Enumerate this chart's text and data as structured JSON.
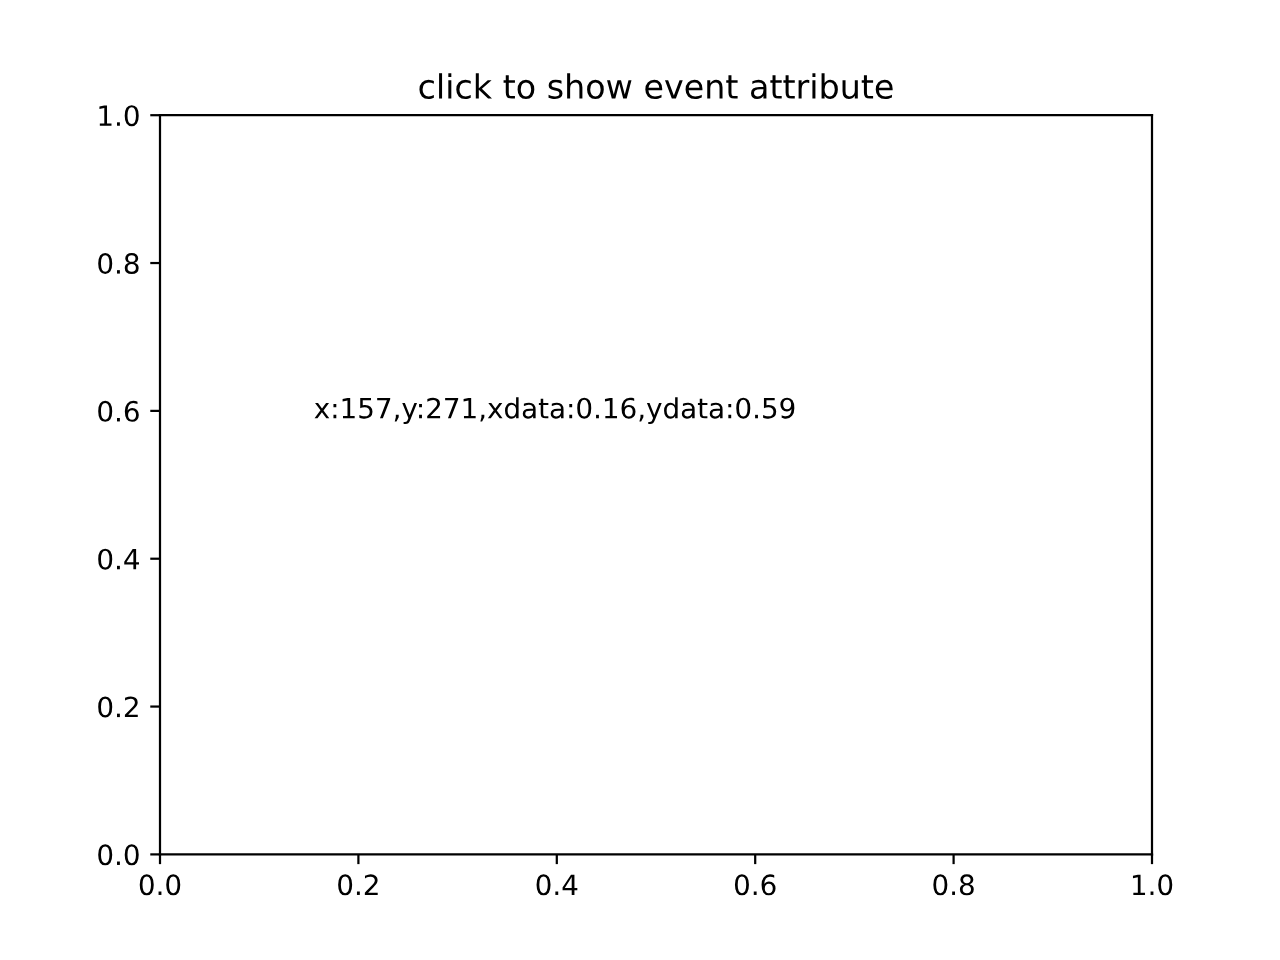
{
  "chart_data": {
    "type": "scatter",
    "title": "click to show event attribute",
    "xlim": [
      0.0,
      1.0
    ],
    "xticks": [
      {
        "value": 0.0,
        "label": "0.0"
      },
      {
        "value": 0.2,
        "label": "0.2"
      },
      {
        "value": 0.4,
        "label": "0.4"
      },
      {
        "value": 0.6,
        "label": "0.6"
      },
      {
        "value": 0.8,
        "label": "0.8"
      },
      {
        "value": 1.0,
        "label": "1.0"
      }
    ],
    "ylim": [
      0.0,
      1.0
    ],
    "yticks": [
      {
        "value": 0.0,
        "label": "0.0"
      },
      {
        "value": 0.2,
        "label": "0.2"
      },
      {
        "value": 0.4,
        "label": "0.4"
      },
      {
        "value": 0.6,
        "label": "0.6"
      },
      {
        "value": 0.8,
        "label": "0.8"
      },
      {
        "value": 1.0,
        "label": "1.0"
      }
    ],
    "annotations": [
      "x:157,y:271,xdata:0.16,ydata:0.59"
    ]
  }
}
